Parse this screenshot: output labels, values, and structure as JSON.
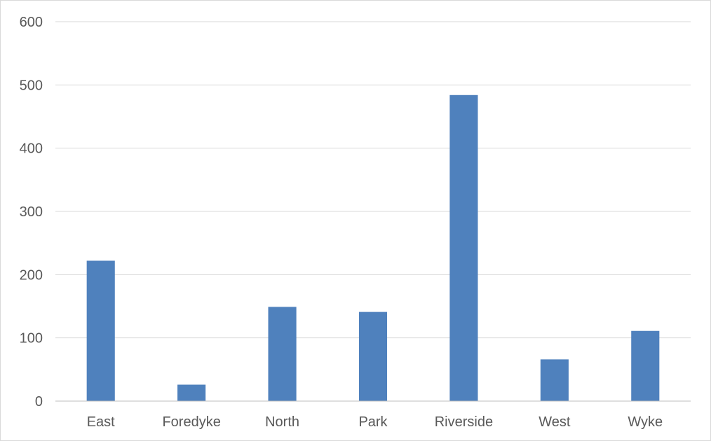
{
  "chart_data": {
    "type": "bar",
    "categories": [
      "East",
      "Foredyke",
      "North",
      "Park",
      "Riverside",
      "West",
      "Wyke"
    ],
    "series": [
      {
        "values": [
          222,
          26,
          149,
          141,
          484,
          66,
          111
        ],
        "color": "#4f81bd"
      }
    ],
    "ylim": [
      0,
      600
    ],
    "yticks": [
      0,
      100,
      200,
      300,
      400,
      500,
      600
    ],
    "title": "",
    "xlabel": "",
    "ylabel": "",
    "grid": true,
    "legend": "none"
  }
}
